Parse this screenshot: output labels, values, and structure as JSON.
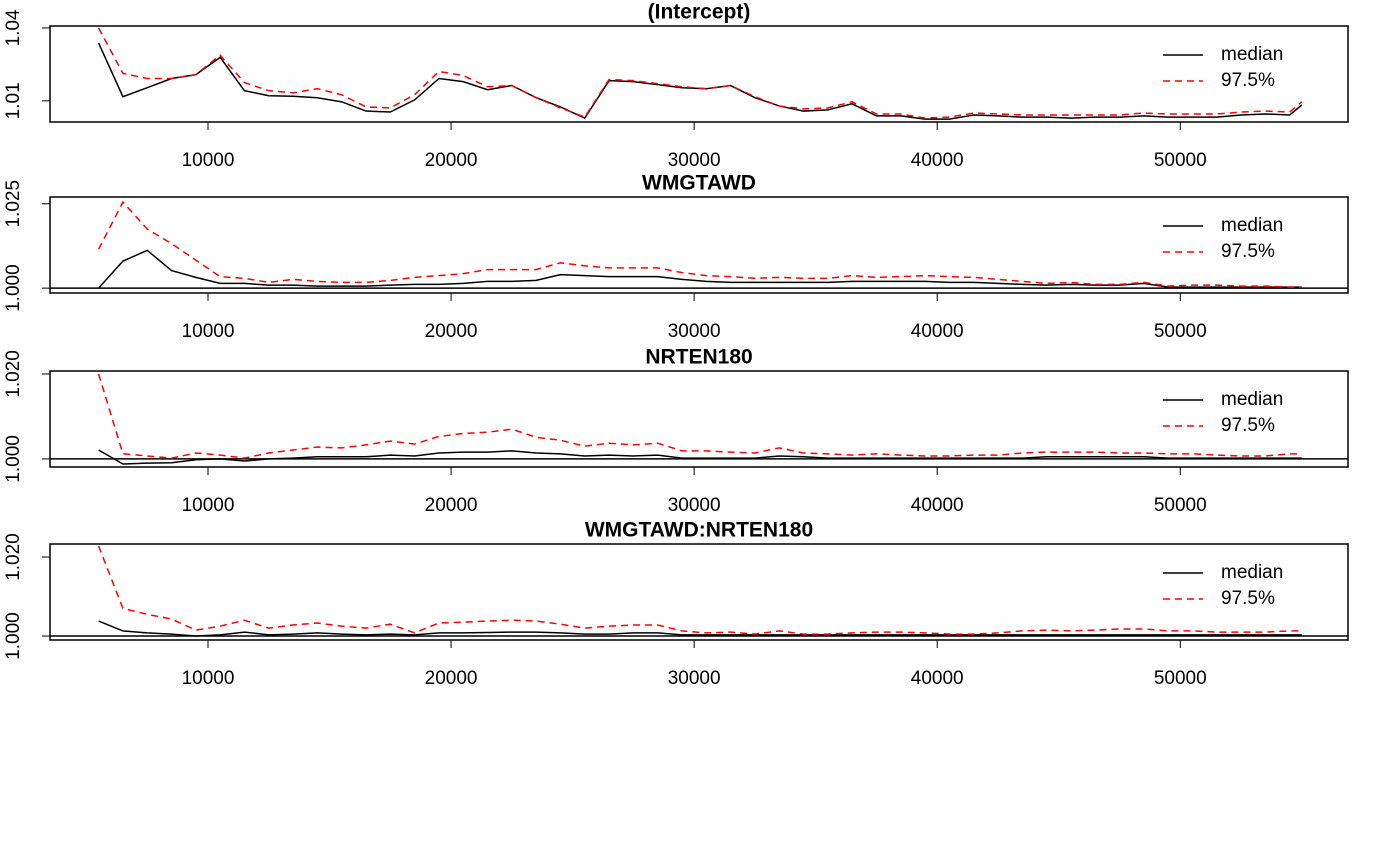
{
  "chart_data": [
    {
      "type": "line",
      "title": "(Intercept)",
      "x": [
        5500,
        6500,
        7500,
        8500,
        9500,
        10500,
        11500,
        12500,
        13500,
        14500,
        15500,
        16500,
        17500,
        18500,
        19500,
        20500,
        21500,
        22500,
        23500,
        24500,
        25500,
        26500,
        27500,
        28500,
        29500,
        30500,
        31500,
        32500,
        33500,
        34500,
        35500,
        36500,
        37500,
        38500,
        39500,
        40500,
        41500,
        42500,
        43500,
        44500,
        45500,
        46500,
        47500,
        48500,
        49500,
        50500,
        51500,
        52500,
        53500,
        54500,
        55000
      ],
      "series": [
        {
          "name": "median",
          "color": "#000000",
          "linestyle": "solid",
          "values": [
            1.0338,
            1.0117,
            1.0154,
            1.0192,
            1.0208,
            1.0279,
            1.0142,
            1.0121,
            1.0119,
            1.0113,
            1.0096,
            1.0058,
            1.0054,
            1.0104,
            1.0192,
            1.0179,
            1.0146,
            1.0163,
            1.0113,
            1.0075,
            1.0029,
            1.0183,
            1.0179,
            1.0167,
            1.0154,
            1.015,
            1.0163,
            1.0113,
            1.0079,
            1.0058,
            1.0063,
            1.0088,
            1.0038,
            1.0038,
            1.0025,
            1.0025,
            1.0042,
            1.0038,
            1.0033,
            1.0033,
            1.0029,
            1.0033,
            1.0033,
            1.0038,
            1.0033,
            1.0033,
            1.0033,
            1.0042,
            1.0046,
            1.0042,
            1.0083
          ]
        },
        {
          "name": "97.5%",
          "color": "#ff0000",
          "linestyle": "dashed",
          "values": [
            1.04,
            1.0213,
            1.0192,
            1.0192,
            1.0208,
            1.0288,
            1.0175,
            1.0142,
            1.0133,
            1.015,
            1.0125,
            1.0075,
            1.0071,
            1.0125,
            1.0221,
            1.0204,
            1.0158,
            1.0163,
            1.0113,
            1.0071,
            1.0033,
            1.0188,
            1.0183,
            1.0171,
            1.0158,
            1.015,
            1.0163,
            1.0117,
            1.0079,
            1.0067,
            1.0071,
            1.0096,
            1.0046,
            1.0046,
            1.0029,
            1.0033,
            1.005,
            1.0046,
            1.0042,
            1.0042,
            1.0042,
            1.0042,
            1.0042,
            1.005,
            1.0046,
            1.0046,
            1.0046,
            1.0054,
            1.0058,
            1.0054,
            1.0096
          ]
        }
      ],
      "xlim": [
        3500,
        56900
      ],
      "xticks": [
        10000,
        20000,
        30000,
        40000,
        50000
      ],
      "ylim": [
        1.0013,
        1.0408
      ],
      "yticks": [
        1.01,
        1.04
      ],
      "legend": "top-right"
    },
    {
      "type": "line",
      "title": "WMGTAWD",
      "x": [
        5500,
        6500,
        7500,
        8500,
        9500,
        10500,
        11500,
        12500,
        13500,
        14500,
        15500,
        16500,
        17500,
        18500,
        19500,
        20500,
        21500,
        22500,
        23500,
        24500,
        25500,
        26500,
        27500,
        28500,
        29500,
        30500,
        31500,
        32500,
        33500,
        34500,
        35500,
        36500,
        37500,
        38500,
        39500,
        40500,
        41500,
        42500,
        43500,
        44500,
        45500,
        46500,
        47500,
        48500,
        49500,
        50500,
        51500,
        52500,
        53500,
        54500,
        55000
      ],
      "series": [
        {
          "name": "median",
          "color": "#000000",
          "linestyle": "solid",
          "values": [
            1.0,
            1.008,
            1.0112,
            1.0052,
            1.0032,
            1.0014,
            1.0014,
            1.0009,
            1.0009,
            1.0006,
            1.0006,
            1.0006,
            1.0009,
            1.0011,
            1.0011,
            1.0014,
            1.002,
            1.002,
            1.0023,
            1.004,
            1.0037,
            1.0034,
            1.0034,
            1.0034,
            1.0026,
            1.002,
            1.0017,
            1.0017,
            1.0017,
            1.0017,
            1.0017,
            1.002,
            1.002,
            1.002,
            1.002,
            1.0017,
            1.0017,
            1.0014,
            1.0011,
            1.0009,
            1.0011,
            1.0009,
            1.0009,
            1.0014,
            1.0003,
            1.0003,
            1.0003,
            1.0003,
            1.0003,
            1.0003,
            1.0003
          ]
        },
        {
          "name": "97.5%",
          "color": "#ff0000",
          "linestyle": "dashed",
          "values": [
            1.0115,
            1.0255,
            1.0175,
            1.0132,
            1.0083,
            1.0034,
            1.0029,
            1.0017,
            1.0026,
            1.002,
            1.0017,
            1.0017,
            1.0023,
            1.0032,
            1.0037,
            1.0043,
            1.0055,
            1.0055,
            1.0055,
            1.0075,
            1.0066,
            1.006,
            1.006,
            1.006,
            1.0046,
            1.0037,
            1.0034,
            1.0029,
            1.0032,
            1.0029,
            1.0029,
            1.0037,
            1.0032,
            1.0034,
            1.0037,
            1.0034,
            1.0032,
            1.0026,
            1.002,
            1.0014,
            1.0017,
            1.0011,
            1.0011,
            1.0017,
            1.0006,
            1.0009,
            1.0009,
            1.0006,
            1.0006,
            1.0003,
            1.0003
          ]
        }
      ],
      "xlim": [
        3500,
        56900
      ],
      "xticks": [
        10000,
        20000,
        30000,
        40000,
        50000
      ],
      "ylim": [
        0.99856,
        1.027
      ],
      "yticks": [
        {
          "value": 1,
          "label": "1.000"
        },
        1.025
      ],
      "hline": 1,
      "legend": "top-right"
    },
    {
      "type": "line",
      "title": "NRTEN180",
      "x": [
        5500,
        6500,
        7500,
        8500,
        9500,
        10500,
        11500,
        12500,
        13500,
        14500,
        15500,
        16500,
        17500,
        18500,
        19500,
        20500,
        21500,
        22500,
        23500,
        24500,
        25500,
        26500,
        27500,
        28500,
        29500,
        30500,
        31500,
        32500,
        33500,
        34500,
        35500,
        36500,
        37500,
        38500,
        39500,
        40500,
        41500,
        42500,
        43500,
        44500,
        45500,
        46500,
        47500,
        48500,
        49500,
        50500,
        51500,
        52500,
        53500,
        54500,
        55000
      ],
      "series": [
        {
          "name": "median",
          "color": "#000000",
          "linestyle": "solid",
          "values": [
            1.0021,
            0.9988,
            0.999,
            0.9991,
            0.9998,
            1.0,
            0.9995,
            1.0,
            1.0002,
            1.0005,
            1.0005,
            1.0005,
            1.0009,
            1.0007,
            1.0014,
            1.0016,
            1.0016,
            1.0019,
            1.0014,
            1.0012,
            1.0007,
            1.0009,
            1.0007,
            1.0009,
            1.0002,
            1.0002,
            1.0002,
            1.0002,
            1.0007,
            1.0005,
            1.0002,
            1.0002,
            1.0002,
            1.0002,
            1.0002,
            1.0002,
            1.0002,
            1.0002,
            1.0002,
            1.0005,
            1.0005,
            1.0005,
            1.0005,
            1.0005,
            1.0002,
            1.0002,
            1.0002,
            1.0002,
            1.0002,
            1.0002,
            1.0002
          ]
        },
        {
          "name": "97.5%",
          "color": "#ff0000",
          "linestyle": "dashed",
          "values": [
            1.02,
            1.0012,
            1.0007,
            1.0002,
            1.0014,
            1.0009,
            1.0002,
            1.0014,
            1.0021,
            1.0028,
            1.0026,
            1.0033,
            1.0042,
            1.0035,
            1.0053,
            1.006,
            1.0063,
            1.007,
            1.0051,
            1.0044,
            1.003,
            1.0037,
            1.0033,
            1.0037,
            1.0019,
            1.0019,
            1.0016,
            1.0014,
            1.0026,
            1.0014,
            1.0012,
            1.0009,
            1.0012,
            1.0009,
            1.0007,
            1.0007,
            1.0009,
            1.0009,
            1.0014,
            1.0016,
            1.0016,
            1.0016,
            1.0014,
            1.0014,
            1.0012,
            1.0012,
            1.0009,
            1.0007,
            1.0007,
            1.0012,
            1.0012
          ]
        }
      ],
      "xlim": [
        3500,
        56900
      ],
      "xticks": [
        10000,
        20000,
        30000,
        40000,
        50000
      ],
      "ylim": [
        0.9981,
        1.0207
      ],
      "yticks": [
        {
          "value": 1,
          "label": "1.000"
        },
        {
          "value": 1.02,
          "label": "1.020"
        }
      ],
      "hline": 1,
      "legend": "top-right"
    },
    {
      "type": "line",
      "title": "WMGTAWD:NRTEN180",
      "x": [
        5500,
        6500,
        7500,
        8500,
        9500,
        10500,
        11500,
        12500,
        13500,
        14500,
        15500,
        16500,
        17500,
        18500,
        19500,
        20500,
        21500,
        22500,
        23500,
        24500,
        25500,
        26500,
        27500,
        28500,
        29500,
        30500,
        31500,
        32500,
        33500,
        34500,
        35500,
        36500,
        37500,
        38500,
        39500,
        40500,
        41500,
        42500,
        43500,
        44500,
        45500,
        46500,
        47500,
        48500,
        49500,
        50500,
        51500,
        52500,
        53500,
        54500,
        55000
      ],
      "series": [
        {
          "name": "median",
          "color": "#000000",
          "linestyle": "solid",
          "values": [
            1.0038,
            1.0013,
            1.0008,
            1.0005,
            1.0,
            1.0003,
            1.001,
            1.0003,
            1.0005,
            1.0008,
            1.0005,
            1.0003,
            1.0005,
            1.0003,
            1.0008,
            1.0008,
            1.0009,
            1.001,
            1.001,
            1.0008,
            1.0005,
            1.0005,
            1.0008,
            1.0008,
            1.0003,
            1.0003,
            1.0003,
            1.0003,
            1.0003,
            1.0003,
            1.0003,
            1.0003,
            1.0003,
            1.0003,
            1.0003,
            1.0003,
            1.0003,
            1.0003,
            1.0003,
            1.0003,
            1.0003,
            1.0003,
            1.0003,
            1.0003,
            1.0003,
            1.0003,
            1.0003,
            1.0003,
            1.0003,
            1.0003,
            1.0003
          ]
        },
        {
          "name": "97.5%",
          "color": "#ff0000",
          "linestyle": "dashed",
          "values": [
            1.0228,
            1.007,
            1.0055,
            1.0043,
            1.0015,
            1.0025,
            1.004,
            1.002,
            1.0028,
            1.0033,
            1.0025,
            1.002,
            1.003,
            1.0008,
            1.0033,
            1.0035,
            1.0038,
            1.004,
            1.0038,
            1.003,
            1.002,
            1.0025,
            1.0028,
            1.0028,
            1.0013,
            1.0008,
            1.001,
            1.0005,
            1.0013,
            1.0005,
            1.0005,
            1.0008,
            1.001,
            1.001,
            1.0008,
            1.0005,
            1.0005,
            1.0008,
            1.0013,
            1.0015,
            1.0013,
            1.0015,
            1.0018,
            1.0018,
            1.0013,
            1.0013,
            1.001,
            1.001,
            1.001,
            1.0013,
            1.0013
          ]
        }
      ],
      "xlim": [
        3500,
        56900
      ],
      "xticks": [
        10000,
        20000,
        30000,
        40000,
        50000
      ],
      "ylim": [
        0.999,
        1.0233
      ],
      "yticks": [
        {
          "value": 1,
          "label": "1.000"
        },
        {
          "value": 1.02,
          "label": "1.020"
        }
      ],
      "hline": 1,
      "legend": "top-right"
    }
  ]
}
